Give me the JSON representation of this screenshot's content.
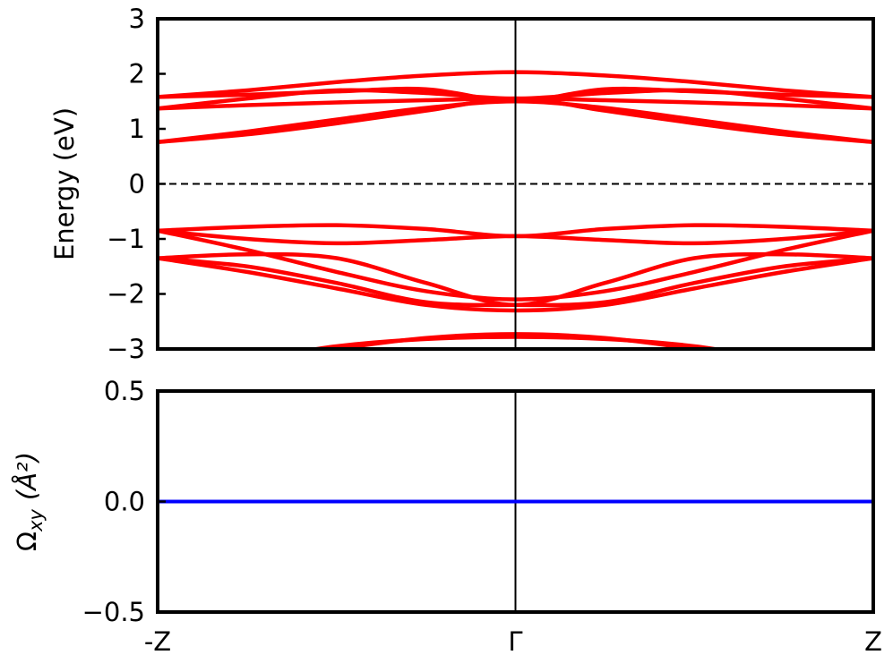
{
  "chart_data": [
    {
      "type": "line",
      "panel": "band-structure",
      "ylabel": "Energy (eV)",
      "xlim": [
        -1,
        1
      ],
      "ylim": [
        -3,
        3
      ],
      "yticks": [
        3,
        2,
        1,
        0,
        -1,
        -2,
        -3
      ],
      "ytick_labels": [
        "3",
        "2",
        "1",
        "0",
        "−1",
        "−2",
        "−3"
      ],
      "fermi_level": 0,
      "high_symmetry_x": [
        0
      ],
      "band_color": "#ff0000",
      "x": [
        -1,
        -0.75,
        -0.5,
        -0.25,
        0,
        0.25,
        0.5,
        0.75,
        1
      ],
      "series": [
        {
          "values": [
            0.76,
            0.95,
            1.17,
            1.38,
            1.5,
            1.38,
            1.17,
            0.95,
            0.76
          ]
        },
        {
          "values": [
            0.76,
            0.9,
            1.1,
            1.33,
            1.55,
            1.33,
            1.1,
            0.9,
            0.76
          ]
        },
        {
          "values": [
            1.37,
            1.43,
            1.48,
            1.52,
            1.55,
            1.52,
            1.48,
            1.43,
            1.37
          ]
        },
        {
          "values": [
            1.37,
            1.55,
            1.7,
            1.65,
            1.55,
            1.65,
            1.7,
            1.55,
            1.37
          ]
        },
        {
          "values": [
            1.58,
            1.7,
            1.85,
            1.97,
            2.03,
            1.97,
            1.85,
            1.7,
            1.58
          ]
        },
        {
          "values": [
            1.58,
            1.62,
            1.68,
            1.72,
            1.5,
            1.72,
            1.68,
            1.62,
            1.58
          ]
        },
        {
          "values": [
            -0.85,
            -0.78,
            -0.75,
            -0.82,
            -0.95,
            -0.82,
            -0.75,
            -0.78,
            -0.85
          ]
        },
        {
          "values": [
            -0.85,
            -1.0,
            -1.08,
            -1.02,
            -0.95,
            -1.02,
            -1.08,
            -1.0,
            -0.85
          ]
        },
        {
          "values": [
            -0.85,
            -1.2,
            -1.6,
            -1.95,
            -2.1,
            -1.95,
            -1.6,
            -1.2,
            -0.85
          ]
        },
        {
          "values": [
            -1.35,
            -1.28,
            -1.35,
            -1.8,
            -2.2,
            -1.8,
            -1.35,
            -1.28,
            -1.35
          ]
        },
        {
          "values": [
            -1.35,
            -1.5,
            -1.8,
            -2.15,
            -2.2,
            -2.15,
            -1.8,
            -1.5,
            -1.35
          ]
        },
        {
          "values": [
            -1.35,
            -1.6,
            -1.9,
            -2.2,
            -2.3,
            -2.2,
            -1.9,
            -1.6,
            -1.35
          ]
        },
        {
          "values": [
            -3.4,
            -3.25,
            -3.0,
            -2.8,
            -2.73,
            -2.8,
            -3.0,
            -3.25,
            -3.4
          ]
        },
        {
          "values": [
            -3.4,
            -3.2,
            -2.95,
            -2.82,
            -2.78,
            -2.82,
            -2.95,
            -3.2,
            -3.4
          ]
        }
      ]
    },
    {
      "type": "line",
      "panel": "berry-curvature",
      "ylabel_symbol": "Ω",
      "ylabel_subscript": "xy",
      "ylabel_unit": "(Å²)",
      "xlim": [
        -1,
        1
      ],
      "ylim": [
        -0.5,
        0.5
      ],
      "yticks": [
        0.5,
        0.0,
        -0.5
      ],
      "ytick_labels": [
        "0.5",
        "0.0",
        "−0.5"
      ],
      "xticks": [
        -1,
        0,
        1
      ],
      "xtick_labels": [
        "-Z",
        "Γ",
        "Z"
      ],
      "high_symmetry_x": [
        0
      ],
      "line_color": "#0000ff",
      "x": [
        -1,
        0,
        1
      ],
      "values": [
        0,
        0,
        0
      ]
    }
  ]
}
